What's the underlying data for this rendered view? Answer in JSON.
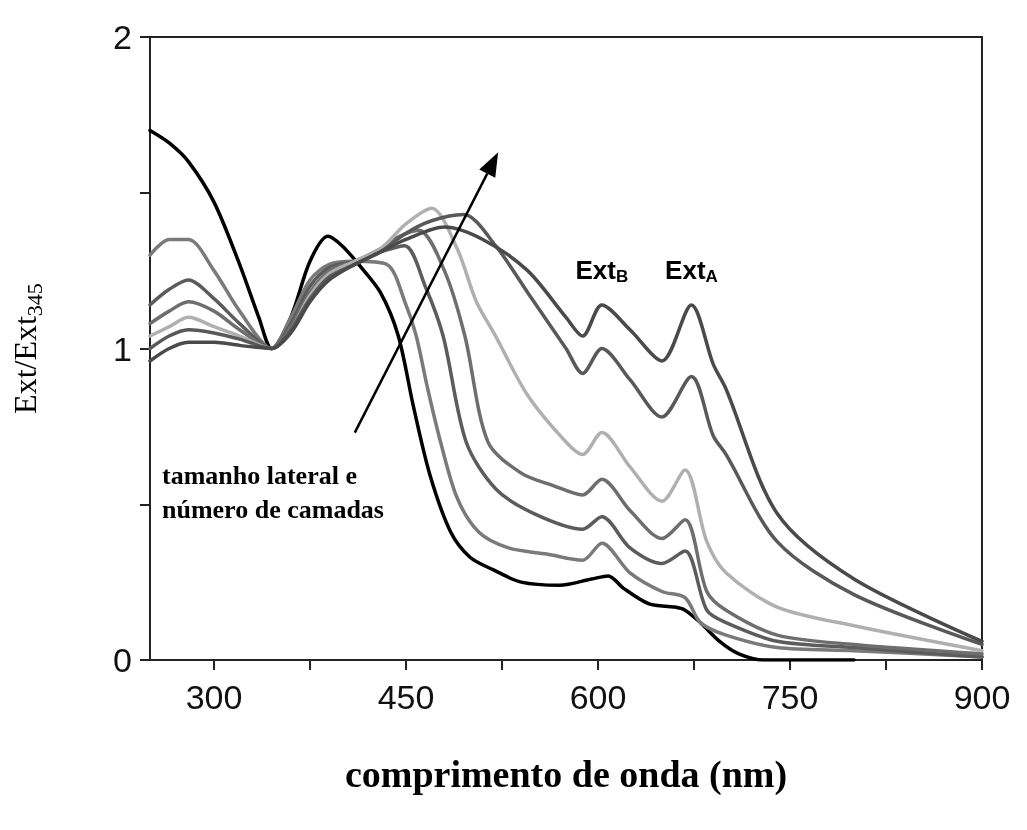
{
  "chart_data": {
    "type": "line",
    "xlabel": "comprimento de onda (nm)",
    "ylabel": "Ext/Ext$_{345}$",
    "xlim": [
      250,
      900
    ],
    "ylim": [
      0,
      2
    ],
    "xticks": [
      300,
      {
        "value": 375,
        "label": null
      },
      450,
      {
        "value": 525,
        "label": null
      },
      600,
      {
        "value": 675,
        "label": null
      },
      750,
      {
        "value": 825,
        "label": null
      },
      900
    ],
    "yticks": [
      0,
      {
        "value": 0.5,
        "label": null
      },
      1,
      {
        "value": 1.5,
        "label": null
      },
      2
    ],
    "marker": "none",
    "line_style": "solid",
    "annotations": [
      "tamanho lateral e número de camadas",
      {
        "text": "Ext$_{B}$",
        "x": 603,
        "y": 1.14
      },
      {
        "text": "Ext$_{A}$",
        "x": 673,
        "y": 1.14
      }
    ],
    "series": [
      {
        "color": "#000000",
        "x": [
          250,
          265,
          280,
          300,
          320,
          335,
          345,
          360,
          375,
          389,
          400,
          413,
          430,
          444,
          456,
          469,
          485,
          500,
          518,
          540,
          570,
          595,
          608,
          620,
          640,
          660,
          668,
          680,
          695,
          710,
          730,
          760,
          800
        ],
        "values": [
          1.7,
          1.66,
          1.6,
          1.47,
          1.27,
          1.1,
          1.0,
          1.1,
          1.28,
          1.36,
          1.33,
          1.27,
          1.18,
          1.04,
          0.81,
          0.59,
          0.41,
          0.33,
          0.29,
          0.25,
          0.24,
          0.26,
          0.27,
          0.23,
          0.18,
          0.17,
          0.16,
          0.12,
          0.06,
          0.02,
          0,
          0,
          0
        ]
      },
      {
        "color": "#7a7a7a",
        "x": [
          250,
          265,
          280,
          300,
          320,
          345,
          360,
          375,
          390,
          410,
          435,
          450,
          458,
          467,
          477,
          490,
          507,
          530,
          560,
          588,
          603,
          625,
          650,
          668,
          680,
          700,
          740,
          800,
          900
        ],
        "values": [
          1.3,
          1.35,
          1.35,
          1.25,
          1.12,
          1.0,
          1.1,
          1.22,
          1.27,
          1.28,
          1.27,
          1.14,
          1.04,
          0.87,
          0.7,
          0.52,
          0.41,
          0.36,
          0.34,
          0.32,
          0.375,
          0.28,
          0.22,
          0.2,
          0.12,
          0.08,
          0.04,
          0.03,
          0.01
        ]
      },
      {
        "color": "#5c5c5c",
        "x": [
          250,
          265,
          280,
          300,
          320,
          345,
          360,
          375,
          390,
          410,
          430,
          449,
          465,
          479,
          497,
          520,
          550,
          588,
          603,
          625,
          650,
          668,
          685,
          700,
          740,
          800,
          900
        ],
        "values": [
          1.14,
          1.19,
          1.22,
          1.16,
          1.08,
          1.0,
          1.08,
          1.2,
          1.26,
          1.28,
          1.31,
          1.33,
          1.2,
          1.04,
          0.7,
          0.55,
          0.47,
          0.42,
          0.46,
          0.36,
          0.31,
          0.35,
          0.16,
          0.12,
          0.06,
          0.04,
          0.01
        ]
      },
      {
        "color": "#6e6e6e",
        "x": [
          250,
          265,
          280,
          300,
          320,
          345,
          360,
          375,
          390,
          410,
          430,
          445,
          460,
          480,
          496,
          514,
          540,
          565,
          588,
          603,
          625,
          650,
          668,
          685,
          700,
          740,
          800,
          900
        ],
        "values": [
          1.08,
          1.12,
          1.15,
          1.12,
          1.06,
          1.0,
          1.07,
          1.18,
          1.25,
          1.28,
          1.32,
          1.36,
          1.38,
          1.25,
          1.04,
          0.7,
          0.6,
          0.56,
          0.53,
          0.58,
          0.48,
          0.39,
          0.45,
          0.22,
          0.16,
          0.08,
          0.05,
          0.02
        ]
      },
      {
        "color": "#b0b0b0",
        "x": [
          250,
          265,
          280,
          300,
          320,
          345,
          360,
          375,
          390,
          410,
          430,
          450,
          470,
          490,
          505,
          520,
          545,
          575,
          588,
          603,
          625,
          650,
          668,
          685,
          700,
          740,
          800,
          900
        ],
        "values": [
          1.04,
          1.07,
          1.1,
          1.07,
          1.04,
          1.0,
          1.06,
          1.17,
          1.24,
          1.28,
          1.32,
          1.4,
          1.45,
          1.32,
          1.15,
          1.04,
          0.85,
          0.7,
          0.66,
          0.73,
          0.62,
          0.51,
          0.61,
          0.38,
          0.28,
          0.17,
          0.11,
          0.03
        ]
      },
      {
        "color": "#595959",
        "x": [
          250,
          265,
          280,
          300,
          320,
          345,
          360,
          375,
          390,
          410,
          430,
          450,
          470,
          495,
          520,
          545,
          575,
          588,
          603,
          625,
          650,
          673,
          690,
          700,
          740,
          800,
          900
        ],
        "values": [
          1.0,
          1.04,
          1.06,
          1.05,
          1.03,
          1.0,
          1.06,
          1.16,
          1.23,
          1.27,
          1.31,
          1.37,
          1.41,
          1.43,
          1.33,
          1.18,
          1.0,
          0.92,
          1.0,
          0.9,
          0.78,
          0.91,
          0.72,
          0.66,
          0.38,
          0.21,
          0.05
        ]
      },
      {
        "color": "#4a4a4a",
        "x": [
          250,
          265,
          280,
          300,
          320,
          345,
          360,
          375,
          390,
          410,
          430,
          450,
          480,
          510,
          545,
          575,
          588,
          603,
          625,
          650,
          673,
          690,
          700,
          740,
          800,
          900
        ],
        "values": [
          0.96,
          1.0,
          1.02,
          1.02,
          1.01,
          1.0,
          1.05,
          1.15,
          1.22,
          1.27,
          1.31,
          1.35,
          1.39,
          1.35,
          1.25,
          1.1,
          1.04,
          1.14,
          1.06,
          0.96,
          1.14,
          0.95,
          0.87,
          0.47,
          0.26,
          0.06
        ]
      }
    ]
  }
}
